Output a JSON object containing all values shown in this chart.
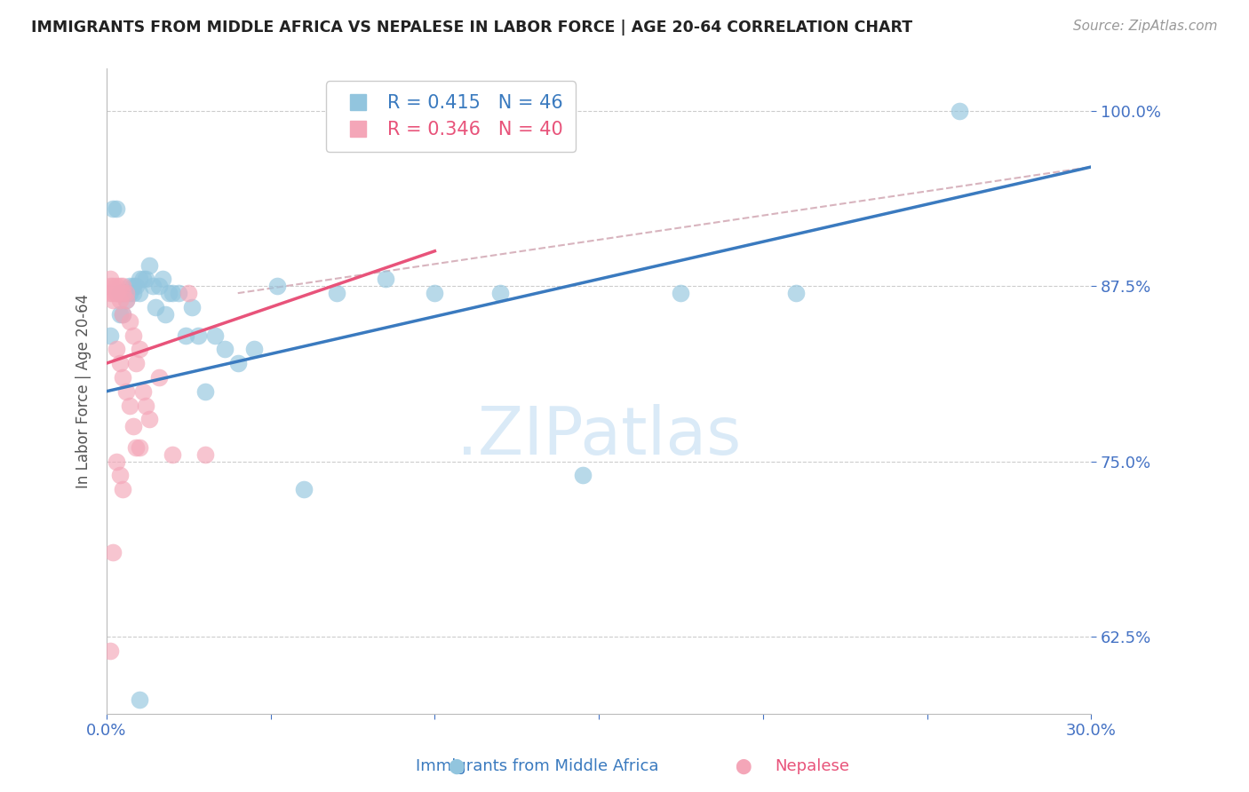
{
  "title": "IMMIGRANTS FROM MIDDLE AFRICA VS NEPALESE IN LABOR FORCE | AGE 20-64 CORRELATION CHART",
  "source": "Source: ZipAtlas.com",
  "ylabel": "In Labor Force | Age 20-64",
  "xlim": [
    0.0,
    0.3
  ],
  "ylim": [
    0.57,
    1.03
  ],
  "yticks": [
    0.625,
    0.75,
    0.875,
    1.0
  ],
  "ytick_labels": [
    "62.5%",
    "75.0%",
    "87.5%",
    "100.0%"
  ],
  "xticks": [
    0.0,
    0.05,
    0.1,
    0.15,
    0.2,
    0.25,
    0.3
  ],
  "xtick_labels": [
    "0.0%",
    "",
    "",
    "",
    "",
    "",
    "30.0%"
  ],
  "blue_R": 0.415,
  "blue_N": 46,
  "pink_R": 0.346,
  "pink_N": 40,
  "blue_color": "#92c5de",
  "pink_color": "#f4a6b8",
  "blue_line_color": "#3a7abf",
  "pink_line_color": "#e8537a",
  "dashed_line_color": "#d8b4be",
  "title_color": "#222222",
  "source_color": "#999999",
  "axis_label_color": "#555555",
  "tick_color": "#4472c4",
  "grid_color": "#cccccc",
  "watermark_color": "#daeaf7",
  "blue_scatter_x": [
    0.001,
    0.002,
    0.003,
    0.004,
    0.004,
    0.005,
    0.005,
    0.006,
    0.006,
    0.007,
    0.007,
    0.008,
    0.008,
    0.009,
    0.01,
    0.01,
    0.011,
    0.012,
    0.013,
    0.014,
    0.015,
    0.016,
    0.017,
    0.018,
    0.019,
    0.02,
    0.022,
    0.024,
    0.026,
    0.028,
    0.03,
    0.033,
    0.036,
    0.04,
    0.045,
    0.052,
    0.06,
    0.07,
    0.085,
    0.1,
    0.12,
    0.145,
    0.175,
    0.21,
    0.26,
    0.01
  ],
  "blue_scatter_y": [
    0.84,
    0.93,
    0.93,
    0.855,
    0.87,
    0.87,
    0.855,
    0.865,
    0.87,
    0.875,
    0.87,
    0.87,
    0.875,
    0.875,
    0.87,
    0.88,
    0.88,
    0.88,
    0.89,
    0.875,
    0.86,
    0.875,
    0.88,
    0.855,
    0.87,
    0.87,
    0.87,
    0.84,
    0.86,
    0.84,
    0.8,
    0.84,
    0.83,
    0.82,
    0.83,
    0.875,
    0.73,
    0.87,
    0.88,
    0.87,
    0.87,
    0.74,
    0.87,
    0.87,
    1.0,
    0.58
  ],
  "pink_scatter_x": [
    0.001,
    0.001,
    0.001,
    0.002,
    0.002,
    0.002,
    0.003,
    0.003,
    0.003,
    0.004,
    0.004,
    0.005,
    0.005,
    0.005,
    0.006,
    0.006,
    0.007,
    0.008,
    0.009,
    0.01,
    0.011,
    0.012,
    0.013,
    0.016,
    0.02,
    0.025,
    0.03,
    0.003,
    0.004,
    0.005,
    0.006,
    0.007,
    0.008,
    0.009,
    0.01,
    0.003,
    0.004,
    0.005,
    0.002,
    0.001
  ],
  "pink_scatter_y": [
    0.87,
    0.875,
    0.88,
    0.875,
    0.87,
    0.865,
    0.875,
    0.87,
    0.87,
    0.875,
    0.865,
    0.855,
    0.87,
    0.875,
    0.865,
    0.87,
    0.85,
    0.84,
    0.82,
    0.83,
    0.8,
    0.79,
    0.78,
    0.81,
    0.755,
    0.87,
    0.755,
    0.83,
    0.82,
    0.81,
    0.8,
    0.79,
    0.775,
    0.76,
    0.76,
    0.75,
    0.74,
    0.73,
    0.685,
    0.615
  ],
  "legend_label_blue": "Immigrants from Middle Africa",
  "legend_label_pink": "Nepalese",
  "blue_line_x": [
    0.0,
    0.3
  ],
  "blue_line_y": [
    0.8,
    0.96
  ],
  "pink_line_x": [
    0.0,
    0.1
  ],
  "pink_line_y": [
    0.82,
    0.9
  ],
  "dash_line_x": [
    0.04,
    0.3
  ],
  "dash_line_y": [
    0.87,
    0.96
  ]
}
